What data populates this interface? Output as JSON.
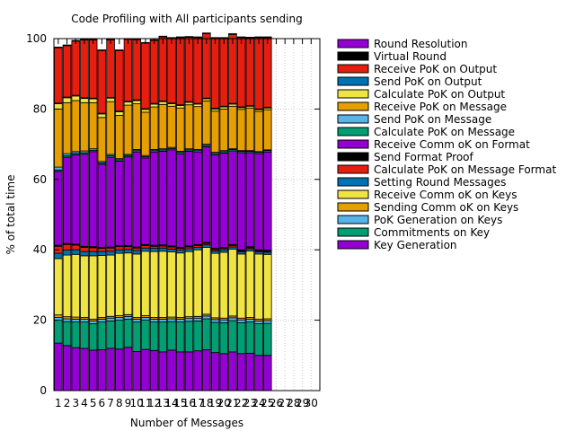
{
  "chart_data": {
    "type": "bar",
    "stacked": true,
    "title": "Code Profiling with All participants sending",
    "xlabel": "Number of Messages",
    "ylabel": "% of total time",
    "ylim": [
      0,
      100
    ],
    "yticks": [
      0,
      20,
      40,
      60,
      80,
      100
    ],
    "xlim": [
      1,
      30
    ],
    "grid": true,
    "legend_position": "right",
    "categories": [
      "1",
      "2",
      "3",
      "4",
      "5",
      "6",
      "7",
      "8",
      "9",
      "10",
      "11",
      "12",
      "13",
      "14",
      "15",
      "16",
      "17",
      "18",
      "19",
      "20",
      "21",
      "22",
      "23",
      "24",
      "25",
      "26",
      "27",
      "28",
      "29",
      "30"
    ],
    "series": [
      {
        "name": "Key Generation",
        "color": "#9400d3",
        "values": [
          13.5,
          12.8,
          12.2,
          12,
          11.5,
          11.6,
          12,
          11.8,
          12.3,
          11.1,
          11.7,
          11.4,
          11,
          11.5,
          11,
          11,
          11.3,
          11.6,
          10.8,
          10.5,
          11,
          10.5,
          10.6,
          10,
          10,
          null,
          null,
          null,
          null,
          null
        ]
      },
      {
        "name": "Commitments on Key",
        "color": "#009e73",
        "values": [
          6.5,
          6.8,
          7.3,
          7.5,
          7.5,
          7.9,
          7.8,
          8.2,
          8,
          8.4,
          8.3,
          8.1,
          8.5,
          8.1,
          8.5,
          8.7,
          8.5,
          8.8,
          8.6,
          8.8,
          8.9,
          8.8,
          8.9,
          9,
          9.1,
          null,
          null,
          null,
          null,
          null
        ]
      },
      {
        "name": "PoK Generation on Keys",
        "color": "#56b4e9",
        "values": [
          0.8,
          0.8,
          0.8,
          0.8,
          0.8,
          0.8,
          0.8,
          0.8,
          0.8,
          0.8,
          0.8,
          0.8,
          0.8,
          0.8,
          0.8,
          0.8,
          0.8,
          0.8,
          0.8,
          0.8,
          0.8,
          0.8,
          0.8,
          0.8,
          0.8,
          null,
          null,
          null,
          null,
          null
        ]
      },
      {
        "name": "Sending Comm  oK on Keys",
        "color": "#e69f00",
        "values": [
          0.7,
          0.6,
          0.6,
          0.5,
          0.5,
          0.5,
          0.5,
          0.5,
          0.5,
          0.5,
          0.5,
          0.5,
          0.5,
          0.5,
          0.5,
          0.5,
          0.5,
          0.5,
          0.5,
          0.5,
          0.5,
          0.5,
          0.5,
          0.5,
          0.5,
          null,
          null,
          null,
          null,
          null
        ]
      },
      {
        "name": "Receive Comm  oK on Keys",
        "color": "#f0e442",
        "values": [
          16,
          17.5,
          17.8,
          17.5,
          18,
          17.6,
          17.4,
          17.7,
          17.5,
          18,
          18.3,
          18.7,
          18.8,
          18.5,
          18.3,
          18.5,
          18.9,
          19,
          18.3,
          18.7,
          19,
          18.2,
          18.9,
          18.5,
          18.3,
          null,
          null,
          null,
          null,
          null
        ]
      },
      {
        "name": "Setting Round Messages",
        "color": "#0072b2",
        "values": [
          1.5,
          1.4,
          1.3,
          1.2,
          1.2,
          1.1,
          1.1,
          1,
          1,
          1,
          0.9,
          0.9,
          0.9,
          0.8,
          0.8,
          0.8,
          0.7,
          0.7,
          0.7,
          0.7,
          0.6,
          0.6,
          0.6,
          0.6,
          0.6,
          null,
          null,
          null,
          null,
          null
        ]
      },
      {
        "name": "Calculate PoK on Message Format",
        "color": "#e51e10",
        "values": [
          2,
          1.6,
          1.3,
          1.2,
          1.1,
          0.9,
          0.9,
          0.9,
          0.8,
          0.7,
          0.7,
          0.6,
          0.6,
          0.6,
          0.5,
          0.5,
          0.5,
          0.4,
          0.4,
          0.4,
          0.4,
          0.3,
          0.3,
          0.3,
          0.3,
          null,
          null,
          null,
          null,
          null
        ]
      },
      {
        "name": "Send Format Proof",
        "color": "#000000",
        "values": [
          0.3,
          0.3,
          0.3,
          0.3,
          0.3,
          0.3,
          0.3,
          0.3,
          0.3,
          0.3,
          0.3,
          0.3,
          0.3,
          0.3,
          0.3,
          0.3,
          0.3,
          0.3,
          0.3,
          0.3,
          0.3,
          0.3,
          0.3,
          0.3,
          0.3,
          null,
          null,
          null,
          null,
          null
        ]
      },
      {
        "name": "Receive Comm  oK on Format",
        "color": "#9400d3",
        "values": [
          21,
          24.5,
          25.4,
          26.2,
          27,
          23.6,
          25.5,
          24,
          25.2,
          27,
          24.6,
          26.5,
          26.6,
          27.3,
          26.6,
          26.9,
          26.3,
          27.2,
          26.6,
          26.8,
          26.6,
          27.6,
          26.7,
          27.3,
          27.9,
          null,
          null,
          null,
          null,
          null
        ]
      },
      {
        "name": "Calculate PoK on Message",
        "color": "#009e73",
        "values": [
          0.4,
          0.4,
          0.4,
          0.4,
          0.4,
          0.4,
          0.4,
          0.4,
          0.4,
          0.4,
          0.4,
          0.4,
          0.4,
          0.4,
          0.4,
          0.4,
          0.4,
          0.4,
          0.4,
          0.4,
          0.4,
          0.4,
          0.4,
          0.4,
          0.4,
          null,
          null,
          null,
          null,
          null
        ]
      },
      {
        "name": "Send PoK on Message",
        "color": "#56b4e9",
        "values": [
          0.8,
          0.6,
          0.5,
          0.5,
          0.4,
          0.4,
          0.4,
          0.3,
          0.3,
          0.3,
          0.3,
          0.3,
          0.3,
          0.3,
          0.3,
          0.3,
          0.3,
          0.3,
          0.3,
          0.3,
          0.2,
          0.2,
          0.2,
          0.2,
          0.2,
          null,
          null,
          null,
          null,
          null
        ]
      },
      {
        "name": "Receive PoK on Message",
        "color": "#e69f00",
        "values": [
          16.5,
          14.5,
          14.5,
          13.7,
          13.1,
          12.5,
          15,
          12.3,
          14,
          13,
          12.3,
          12.1,
          12.6,
          11.7,
          12.3,
          12.5,
          12.2,
          12.3,
          11.7,
          11.8,
          12.1,
          11.7,
          12.1,
          11.4,
          11.4,
          null,
          null,
          null,
          null,
          null
        ]
      },
      {
        "name": "Calculate PoK on Output",
        "color": "#f0e442",
        "values": [
          1.5,
          1.4,
          1.3,
          1.2,
          1.1,
          1,
          1,
          1,
          0.9,
          0.9,
          0.8,
          0.8,
          0.8,
          0.7,
          0.7,
          0.7,
          0.7,
          0.6,
          0.6,
          0.6,
          0.6,
          0.5,
          0.5,
          0.5,
          0.5,
          null,
          null,
          null,
          null,
          null
        ]
      },
      {
        "name": "Send PoK on Output",
        "color": "#0072b2",
        "values": [
          0.2,
          0.2,
          0.2,
          0.2,
          0.2,
          0.2,
          0.2,
          0.2,
          0.2,
          0.2,
          0.2,
          0.2,
          0.2,
          0.2,
          0.2,
          0.2,
          0.2,
          0.2,
          0.2,
          0.2,
          0.2,
          0.2,
          0.2,
          0.2,
          0.2,
          null,
          null,
          null,
          null,
          null
        ]
      },
      {
        "name": "Receive PoK on Output",
        "color": "#e51e10",
        "values": [
          15.7,
          14.6,
          15.4,
          16.4,
          16.5,
          17.8,
          16.3,
          17.2,
          17.6,
          17.1,
          18.6,
          17.9,
          18.2,
          18.4,
          19.1,
          18.3,
          18.7,
          18.3,
          19.9,
          19.3,
          19.6,
          19.7,
          19.2,
          20.3,
          19.8,
          null,
          null,
          null,
          null,
          null
        ]
      },
      {
        "name": "Virtual Round",
        "color": "#000000",
        "values": [
          0.1,
          0.1,
          0.1,
          0.1,
          0.1,
          0.1,
          0.1,
          0.1,
          0.1,
          0.1,
          0.1,
          0.1,
          0.1,
          0.1,
          0.1,
          0.1,
          0.1,
          0.1,
          0.1,
          0.1,
          0.1,
          0.1,
          0.1,
          0.1,
          0.1,
          null,
          null,
          null,
          null,
          null
        ]
      },
      {
        "name": "Round Resolution",
        "color": "#9400d3",
        "values": [
          0.1,
          0.1,
          0.1,
          0.1,
          0.1,
          0.1,
          0.1,
          0.1,
          0.1,
          0.1,
          0.1,
          0.1,
          0.1,
          0.1,
          0.1,
          0.1,
          0.1,
          0.1,
          0.1,
          0.1,
          0.1,
          0.1,
          0.1,
          0.1,
          0.1,
          null,
          null,
          null,
          null,
          null
        ]
      }
    ]
  }
}
